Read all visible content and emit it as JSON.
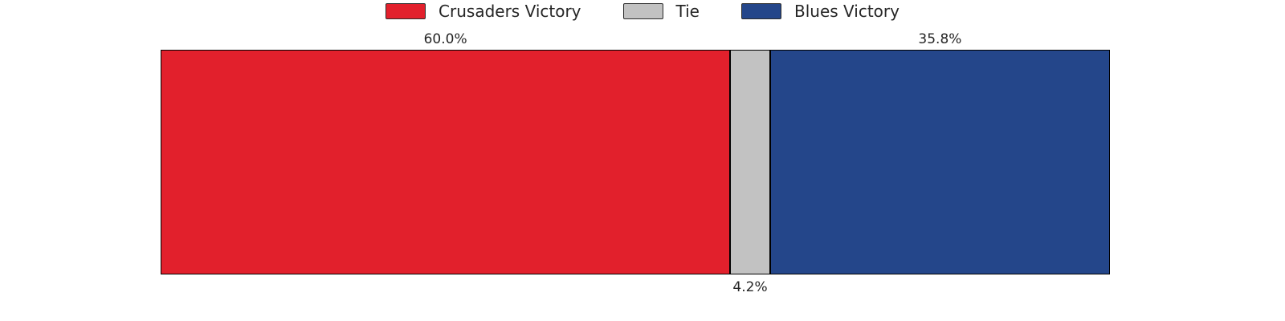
{
  "chart_data": {
    "type": "bar",
    "orientation": "horizontal-stacked",
    "total": 100,
    "xlim": [
      0,
      100
    ],
    "grid": false,
    "background": "#ffffff",
    "bar_edge_color": "#000000",
    "text_color": "#262626",
    "segments": [
      {
        "label": "Crusaders Victory",
        "value": 60.0,
        "display": "60.0%",
        "color": "#e2202c",
        "label_position": "above"
      },
      {
        "label": "Tie",
        "value": 4.2,
        "display": "4.2%",
        "color": "#c2c2c2",
        "label_position": "below"
      },
      {
        "label": "Blues Victory",
        "value": 35.8,
        "display": "35.8%",
        "color": "#24468a",
        "label_position": "above"
      }
    ],
    "legend": {
      "position": "top-center",
      "frame": false,
      "entries": [
        {
          "label": "Crusaders Victory",
          "color": "#e2202c"
        },
        {
          "label": "Tie",
          "color": "#c2c2c2"
        },
        {
          "label": "Blues Victory",
          "color": "#24468a"
        }
      ]
    }
  }
}
